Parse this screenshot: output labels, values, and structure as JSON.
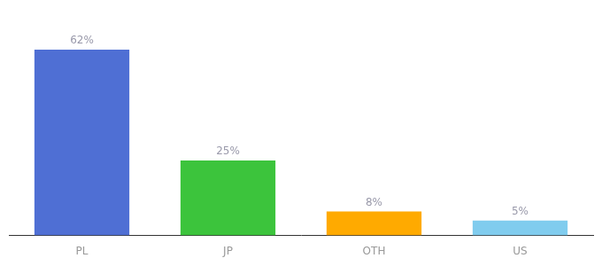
{
  "chart_data": {
    "type": "bar",
    "categories": [
      "PL",
      "JP",
      "OTH",
      "US"
    ],
    "values": [
      62,
      25,
      8,
      5
    ],
    "value_labels": [
      "62%",
      "25%",
      "8%",
      "5%"
    ],
    "colors": [
      "#4f6fd4",
      "#3cc43c",
      "#ffaa00",
      "#80ccee"
    ],
    "ylim": [
      0,
      75
    ],
    "data_labels": true,
    "tick_labels": "x",
    "grid": false
  }
}
